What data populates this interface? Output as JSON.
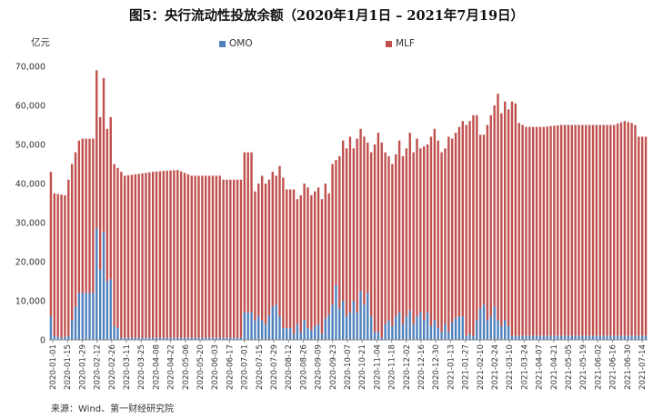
{
  "title": "图5：央行流动性投放余额（2020年1月1日 – 2021年7月19日）",
  "y_unit": "亿元",
  "source": "来源：Wind、第一财经研究院",
  "colors": {
    "omo": "#4f81bd",
    "mlf": "#c0504d",
    "axis": "#888888",
    "text": "#333333"
  },
  "chart_data": {
    "type": "bar",
    "stacked": true,
    "y_unit": "亿元",
    "ylim": [
      0,
      70000
    ],
    "yticks": [
      "0",
      "10,000",
      "20,000",
      "30,000",
      "40,000",
      "50,000",
      "60,000",
      "70,000"
    ],
    "legend": {
      "placement": "top-center",
      "entries": [
        "OMO",
        "MLF"
      ]
    },
    "x_tick_labels": [
      "2020-01-01",
      "2020-01-15",
      "2020-01-29",
      "2020-02-12",
      "2020-02-26",
      "2020-03-11",
      "2020-03-25",
      "2020-04-08",
      "2020-04-22",
      "2020-05-06",
      "2020-05-20",
      "2020-06-03",
      "2020-06-17",
      "2020-07-01",
      "2020-07-15",
      "2020-07-29",
      "2020-08-12",
      "2020-08-26",
      "2020-09-09",
      "2020-09-23",
      "2020-10-07",
      "2020-10-21",
      "2020-11-04",
      "2020-11-18",
      "2020-12-02",
      "2020-12-16",
      "2020-12-30",
      "2021-01-13",
      "2021-01-27",
      "2021-02-10",
      "2021-02-24",
      "2021-03-10",
      "2021-03-24",
      "2021-04-07",
      "2021-04-21",
      "2021-05-05",
      "2021-05-19",
      "2021-06-02",
      "2021-06-16",
      "2021-06-30",
      "2021-07-14"
    ],
    "total_anchors": [
      [
        0,
        43000
      ],
      [
        1,
        37500
      ],
      [
        4,
        37000
      ],
      [
        6,
        45000
      ],
      [
        8,
        51000
      ],
      [
        9,
        51500
      ],
      [
        12,
        51500
      ],
      [
        13,
        69000
      ],
      [
        14,
        57000
      ],
      [
        15,
        67000
      ],
      [
        16,
        54000
      ],
      [
        17,
        57000
      ],
      [
        18,
        45000
      ],
      [
        21,
        42000
      ],
      [
        29,
        43000
      ],
      [
        36,
        43500
      ],
      [
        40,
        42000
      ],
      [
        48,
        42000
      ],
      [
        49,
        41000
      ],
      [
        54,
        41000
      ],
      [
        55,
        48000
      ],
      [
        57,
        48000
      ],
      [
        58,
        38000
      ],
      [
        60,
        42000
      ],
      [
        61,
        40000
      ],
      [
        62,
        41000
      ],
      [
        63,
        43000
      ],
      [
        64,
        42000
      ],
      [
        65,
        44500
      ],
      [
        67,
        38500
      ],
      [
        69,
        38500
      ],
      [
        70,
        36000
      ],
      [
        71,
        37000
      ],
      [
        72,
        40000
      ],
      [
        73,
        39000
      ],
      [
        74,
        37000
      ],
      [
        75,
        38000
      ],
      [
        76,
        39000
      ],
      [
        77,
        36000
      ],
      [
        78,
        40000
      ],
      [
        79,
        37500
      ],
      [
        80,
        45000
      ],
      [
        82,
        47000
      ],
      [
        83,
        51000
      ],
      [
        84,
        49000
      ],
      [
        85,
        52000
      ],
      [
        86,
        49000
      ],
      [
        88,
        54000
      ],
      [
        89,
        52000
      ],
      [
        90,
        50500
      ],
      [
        91,
        48000
      ],
      [
        92,
        50000
      ],
      [
        93,
        53000
      ],
      [
        95,
        48000
      ],
      [
        96,
        47000
      ],
      [
        97,
        45000
      ],
      [
        98,
        47500
      ],
      [
        99,
        51000
      ],
      [
        100,
        47000
      ],
      [
        101,
        49000
      ],
      [
        102,
        53000
      ],
      [
        103,
        48000
      ],
      [
        104,
        51500
      ],
      [
        105,
        49000
      ],
      [
        106,
        49500
      ],
      [
        107,
        50000
      ],
      [
        108,
        52000
      ],
      [
        109,
        54000
      ],
      [
        110,
        51000
      ],
      [
        111,
        48000
      ],
      [
        112,
        49000
      ],
      [
        113,
        52000
      ],
      [
        114,
        51500
      ],
      [
        115,
        53000
      ],
      [
        116,
        54500
      ],
      [
        117,
        56000
      ],
      [
        118,
        55000
      ],
      [
        119,
        56000
      ],
      [
        120,
        57500
      ],
      [
        121,
        57500
      ],
      [
        122,
        52500
      ],
      [
        123,
        52500
      ],
      [
        124,
        55000
      ],
      [
        125,
        57500
      ],
      [
        126,
        60000
      ],
      [
        127,
        63000
      ],
      [
        128,
        58000
      ],
      [
        129,
        61000
      ],
      [
        130,
        59000
      ],
      [
        131,
        61000
      ],
      [
        132,
        60500
      ],
      [
        133,
        55500
      ],
      [
        135,
        54500
      ],
      [
        137,
        54500
      ],
      [
        140,
        54500
      ],
      [
        145,
        55000
      ],
      [
        150,
        55000
      ],
      [
        155,
        55000
      ],
      [
        160,
        55000
      ],
      [
        163,
        56000
      ],
      [
        165,
        55500
      ],
      [
        166,
        55000
      ],
      [
        167,
        52000
      ],
      [
        169,
        52000
      ]
    ],
    "omo_anchors": [
      [
        0,
        6000
      ],
      [
        1,
        1000
      ],
      [
        3,
        500
      ],
      [
        5,
        1000
      ],
      [
        6,
        5000
      ],
      [
        7,
        8500
      ],
      [
        8,
        12000
      ],
      [
        12,
        12000
      ],
      [
        13,
        28500
      ],
      [
        14,
        18000
      ],
      [
        15,
        27500
      ],
      [
        16,
        15000
      ],
      [
        17,
        15500
      ],
      [
        18,
        3500
      ],
      [
        19,
        3000
      ],
      [
        20,
        500
      ],
      [
        54,
        500
      ],
      [
        55,
        7000
      ],
      [
        57,
        7000
      ],
      [
        58,
        5000
      ],
      [
        59,
        6000
      ],
      [
        61,
        4000
      ],
      [
        63,
        8500
      ],
      [
        64,
        9000
      ],
      [
        66,
        3000
      ],
      [
        68,
        3000
      ],
      [
        69,
        1500
      ],
      [
        70,
        4000
      ],
      [
        71,
        2000
      ],
      [
        72,
        5000
      ],
      [
        73,
        3000
      ],
      [
        74,
        2500
      ],
      [
        75,
        3500
      ],
      [
        76,
        4000
      ],
      [
        77,
        1500
      ],
      [
        78,
        5500
      ],
      [
        79,
        6500
      ],
      [
        80,
        9000
      ],
      [
        81,
        14000
      ],
      [
        82,
        8000
      ],
      [
        83,
        10000
      ],
      [
        84,
        6000
      ],
      [
        85,
        7000
      ],
      [
        86,
        10000
      ],
      [
        87,
        7000
      ],
      [
        88,
        12500
      ],
      [
        89,
        9000
      ],
      [
        90,
        12000
      ],
      [
        91,
        6000
      ],
      [
        92,
        2000
      ],
      [
        93,
        2000
      ],
      [
        94,
        500
      ],
      [
        95,
        4000
      ],
      [
        96,
        5000
      ],
      [
        97,
        3500
      ],
      [
        98,
        6000
      ],
      [
        99,
        7000
      ],
      [
        100,
        4000
      ],
      [
        101,
        6000
      ],
      [
        102,
        7500
      ],
      [
        103,
        4000
      ],
      [
        104,
        6000
      ],
      [
        105,
        7000
      ],
      [
        106,
        5000
      ],
      [
        107,
        7000
      ],
      [
        108,
        3500
      ],
      [
        109,
        5000
      ],
      [
        110,
        3000
      ],
      [
        111,
        2000
      ],
      [
        112,
        4000
      ],
      [
        113,
        2000
      ],
      [
        114,
        4500
      ],
      [
        115,
        5500
      ],
      [
        116,
        6000
      ],
      [
        117,
        6000
      ],
      [
        118,
        1000
      ],
      [
        119,
        1500
      ],
      [
        120,
        1000
      ],
      [
        121,
        5000
      ],
      [
        122,
        8000
      ],
      [
        123,
        9000
      ],
      [
        124,
        5000
      ],
      [
        125,
        6000
      ],
      [
        126,
        8500
      ],
      [
        127,
        5000
      ],
      [
        128,
        3500
      ],
      [
        129,
        5000
      ],
      [
        130,
        3500
      ],
      [
        131,
        1000
      ],
      [
        169,
        1000
      ]
    ],
    "n_bars": 170
  }
}
